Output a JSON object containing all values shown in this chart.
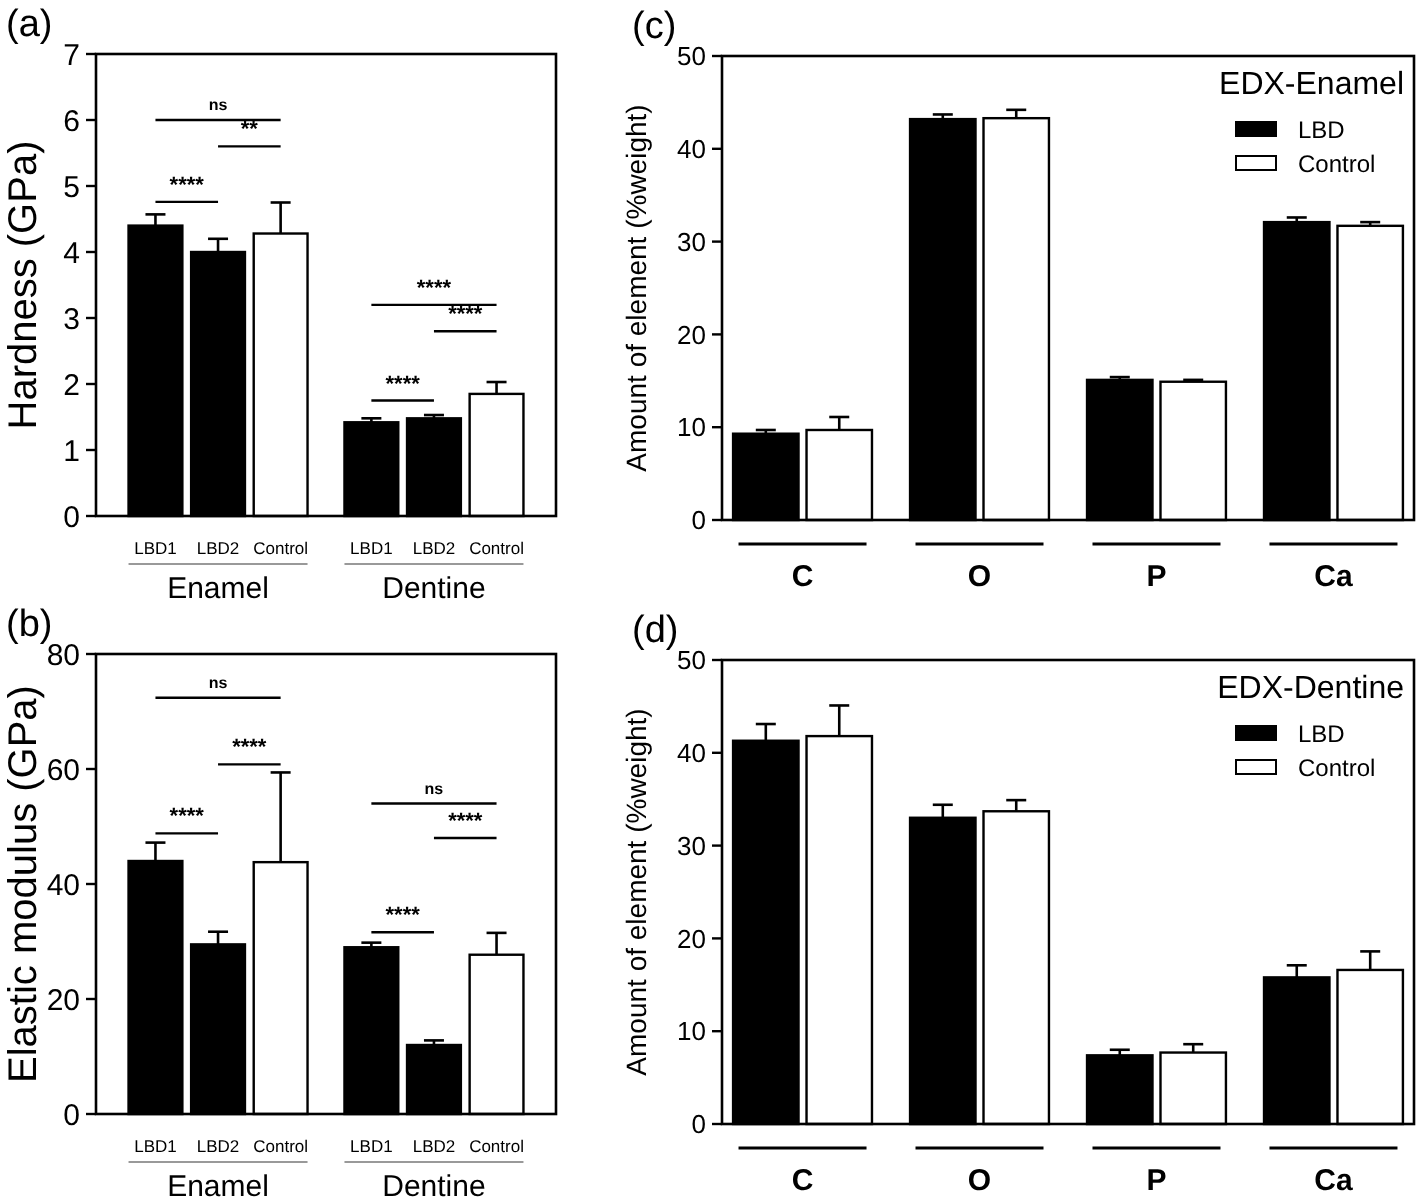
{
  "chart_data": [
    {
      "type": "bar",
      "title": "(a)",
      "ylabel": "Hardness (GPa)",
      "categories": [
        "LBD1",
        "LBD2",
        "Control",
        "LBD1",
        "LBD2",
        "Control"
      ],
      "values": [
        4.4,
        4.0,
        4.28,
        1.42,
        1.48,
        1.85
      ],
      "colors": [
        "#000000",
        "#000000",
        "#ffffff",
        "#000000",
        "#000000",
        "#ffffff"
      ],
      "errors": [
        [
          4.4,
          4.57
        ],
        [
          4.0,
          4.2
        ],
        [
          4.28,
          4.75
        ],
        [
          1.42,
          1.48
        ],
        [
          1.48,
          1.53
        ],
        [
          1.85,
          2.03
        ]
      ],
      "ylim": [
        0,
        7
      ],
      "yticks": [
        0,
        1,
        2,
        3,
        4,
        5,
        6,
        7
      ],
      "grid": false,
      "legend": false,
      "annotations": [
        "ns",
        "**",
        "****",
        "****",
        "****",
        "****",
        "Enamel",
        "Dentine"
      ]
    },
    {
      "type": "bar",
      "title": "(b)",
      "ylabel": "Elastic modulus (GPa)",
      "categories": [
        "LBD1",
        "LBD2",
        "Control",
        "LBD1",
        "LBD2",
        "Control"
      ],
      "values": [
        44,
        29.5,
        43.8,
        29,
        12,
        27.7
      ],
      "colors": [
        "#000000",
        "#000000",
        "#ffffff",
        "#000000",
        "#000000",
        "#ffffff"
      ],
      "errors": [
        [
          44,
          47.2
        ],
        [
          29.5,
          31.7
        ],
        [
          43.8,
          59.4
        ],
        [
          29,
          29.8
        ],
        [
          12,
          12.8
        ],
        [
          27.7,
          31.5
        ]
      ],
      "ylim": [
        0,
        80
      ],
      "yticks": [
        0,
        20,
        40,
        60,
        80
      ],
      "grid": false,
      "legend": false,
      "annotations": [
        "ns",
        "****",
        "****",
        "ns",
        "****",
        "****",
        "Enamel",
        "Dentine"
      ]
    },
    {
      "type": "bar",
      "title": "(c)",
      "ylabel": "Amount of element (%weight)",
      "legend_title": "EDX-Enamel",
      "categories": [
        "C",
        "O",
        "P",
        "Ca"
      ],
      "ylim": [
        0,
        50
      ],
      "yticks": [
        0,
        10,
        20,
        30,
        40,
        50
      ],
      "grid": false,
      "legend": "top right",
      "series": [
        {
          "name": "LBD",
          "color": "#000000",
          "values": [
            9.3,
            43.2,
            15.1,
            32.1
          ],
          "errors": [
            [
              9.3,
              9.7
            ],
            [
              43.2,
              43.7
            ],
            [
              15.1,
              15.4
            ],
            [
              32.1,
              32.6
            ]
          ]
        },
        {
          "name": "Control",
          "color": "#ffffff",
          "values": [
            9.7,
            43.3,
            14.9,
            31.7
          ],
          "errors": [
            [
              9.7,
              11.1
            ],
            [
              43.3,
              44.2
            ],
            [
              14.9,
              15.1
            ],
            [
              31.7,
              32.1
            ]
          ]
        }
      ]
    },
    {
      "type": "bar",
      "title": "(d)",
      "ylabel": "Amount of element (%weight)",
      "legend_title": "EDX-Dentine",
      "categories": [
        "C",
        "O",
        "P",
        "Ca"
      ],
      "ylim": [
        0,
        50
      ],
      "yticks": [
        0,
        10,
        20,
        30,
        40,
        50
      ],
      "grid": false,
      "legend": "top right",
      "series": [
        {
          "name": "LBD",
          "color": "#000000",
          "values": [
            41.3,
            33.0,
            7.4,
            15.8
          ],
          "errors": [
            [
              41.3,
              43.1
            ],
            [
              33.0,
              34.4
            ],
            [
              7.4,
              8.0
            ],
            [
              15.8,
              17.1
            ]
          ]
        },
        {
          "name": "Control",
          "color": "#ffffff",
          "values": [
            41.8,
            33.7,
            7.7,
            16.6
          ],
          "errors": [
            [
              41.8,
              45.1
            ],
            [
              33.7,
              34.9
            ],
            [
              7.7,
              8.6
            ],
            [
              16.6,
              18.6
            ]
          ]
        }
      ]
    }
  ]
}
